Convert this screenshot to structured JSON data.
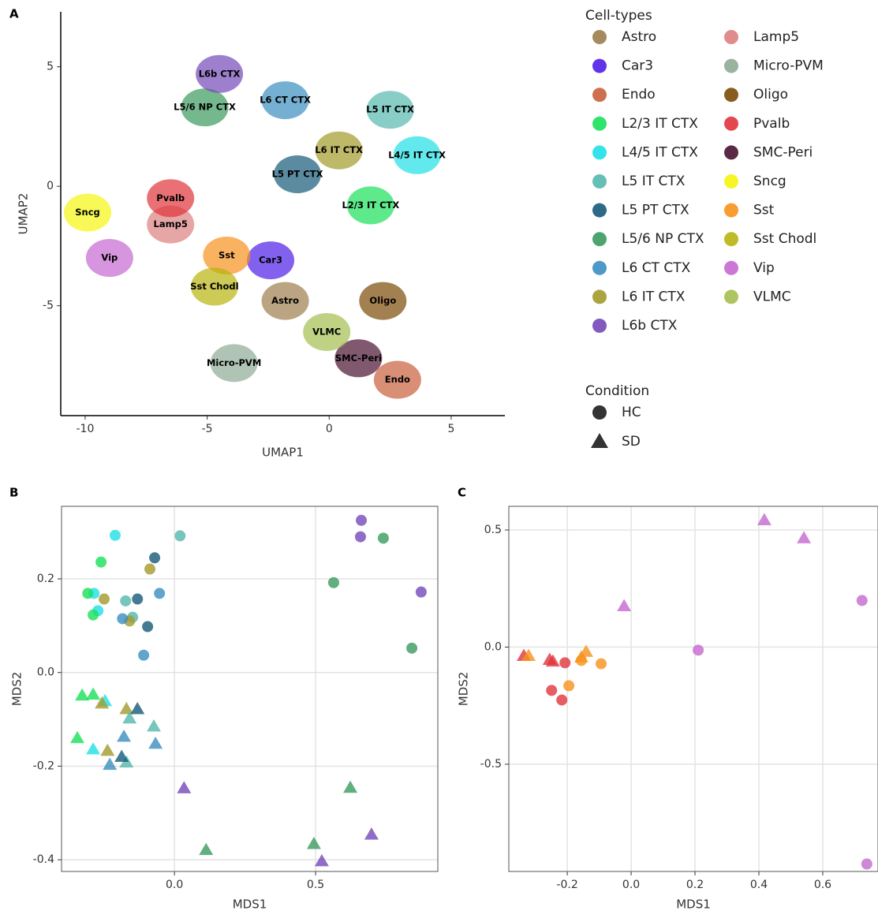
{
  "chart_data": [
    {
      "type": "scatter",
      "panel_label": "A",
      "x_label": "UMAP1",
      "y_label": "UMAP2",
      "grid": false,
      "xlim": [
        -11,
        7.2
      ],
      "ylim": [
        -9.6,
        7.3
      ],
      "xticks": [
        -10,
        -5,
        0,
        5
      ],
      "yticks": [
        -5,
        0,
        5
      ],
      "legend_title": "Cell-types",
      "series": [
        {
          "name": "Astro",
          "color": "#9c7d4b",
          "x": [
            -1.8
          ],
          "values": [
            -4.8
          ]
        },
        {
          "name": "Car3",
          "color": "#4f1ee8",
          "x": [
            -2.4
          ],
          "values": [
            -3.1
          ]
        },
        {
          "name": "Endo",
          "color": "#c8603a",
          "x": [
            2.8
          ],
          "values": [
            -8.1
          ]
        },
        {
          "name": "L2/3 IT CTX",
          "color": "#19e05a",
          "x": [
            1.7
          ],
          "values": [
            -0.8
          ]
        },
        {
          "name": "L4/5 IT CTX",
          "color": "#1ee0e6",
          "x": [
            3.6
          ],
          "values": [
            1.3
          ]
        },
        {
          "name": "L5 IT CTX",
          "color": "#55b8ae",
          "x": [
            2.5
          ],
          "values": [
            3.2
          ]
        },
        {
          "name": "L5 PT CTX",
          "color": "#155a78",
          "x": [
            -1.3
          ],
          "values": [
            0.5
          ]
        },
        {
          "name": "L5/6 NP CTX",
          "color": "#3a9a5e",
          "x": [
            -5.1
          ],
          "values": [
            3.3
          ]
        },
        {
          "name": "L6 CT CTX",
          "color": "#3a8fc0",
          "x": [
            -1.8
          ],
          "values": [
            3.6
          ]
        },
        {
          "name": "L6 IT CTX",
          "color": "#a39a2a",
          "x": [
            0.4
          ],
          "values": [
            1.5
          ]
        },
        {
          "name": "L6b CTX",
          "color": "#7448b8",
          "x": [
            -4.5
          ],
          "values": [
            4.7
          ]
        },
        {
          "name": "Lamp5",
          "color": "#dd8080",
          "x": [
            -6.5
          ],
          "values": [
            -1.6
          ]
        },
        {
          "name": "Micro-PVM",
          "color": "#8fab95",
          "x": [
            -3.9
          ],
          "values": [
            -7.4
          ]
        },
        {
          "name": "Oligo",
          "color": "#7a4a05",
          "x": [
            2.2
          ],
          "values": [
            -4.8
          ]
        },
        {
          "name": "Pvalb",
          "color": "#e0343c",
          "x": [
            -6.5
          ],
          "values": [
            -0.5
          ]
        },
        {
          "name": "SMC-Peri",
          "color": "#4a1230",
          "x": [
            1.2
          ],
          "values": [
            -7.2
          ]
        },
        {
          "name": "Sncg",
          "color": "#f5f50e",
          "x": [
            -9.9
          ],
          "values": [
            -1.1
          ]
        },
        {
          "name": "Sst",
          "color": "#f7921c",
          "x": [
            -4.2
          ],
          "values": [
            -2.9
          ]
        },
        {
          "name": "Sst Chodl",
          "color": "#b8b40e",
          "x": [
            -4.7
          ],
          "values": [
            -4.2
          ]
        },
        {
          "name": "Vip",
          "color": "#c468d0",
          "x": [
            -9.0
          ],
          "values": [
            -3.0
          ]
        },
        {
          "name": "VLMC",
          "color": "#a4bf50",
          "x": [
            -0.1
          ],
          "values": [
            -6.1
          ]
        }
      ],
      "shape_legend": {
        "title": "Condition",
        "items": [
          {
            "name": "HC",
            "shape": "circle"
          },
          {
            "name": "SD",
            "shape": "triangle"
          }
        ]
      }
    },
    {
      "type": "scatter",
      "panel_label": "B",
      "x_label": "MDS1",
      "y_label": "MDS2",
      "grid": true,
      "xlim": [
        -0.4,
        0.933
      ],
      "ylim": [
        -0.425,
        0.355
      ],
      "xticks": [
        {
          "value": 0,
          "label": "0.0"
        },
        0.5
      ],
      "yticks": [
        -0.4,
        -0.2,
        {
          "value": 0,
          "label": "0.0"
        },
        0.2
      ],
      "series": [
        {
          "color": "#1ee0e6",
          "condition": "HC",
          "x": [
            -0.21,
            -0.285,
            -0.271
          ],
          "values": [
            0.293,
            0.169,
            0.132
          ]
        },
        {
          "color": "#55b8ae",
          "condition": "HC",
          "x": [
            0.02,
            -0.173,
            -0.148
          ],
          "values": [
            0.292,
            0.153,
            0.118
          ]
        },
        {
          "color": "#19e05a",
          "condition": "HC",
          "x": [
            -0.26,
            -0.307,
            -0.288
          ],
          "values": [
            0.236,
            0.169,
            0.123
          ]
        },
        {
          "color": "#155a78",
          "condition": "HC",
          "x": [
            -0.07,
            -0.131,
            -0.095
          ],
          "values": [
            0.245,
            0.157,
            0.098
          ]
        },
        {
          "color": "#a39a2a",
          "condition": "HC",
          "x": [
            -0.087,
            -0.249,
            -0.159
          ],
          "values": [
            0.221,
            0.157,
            0.11
          ]
        },
        {
          "color": "#3a8fc0",
          "condition": "HC",
          "x": [
            -0.053,
            -0.184,
            -0.109
          ],
          "values": [
            0.169,
            0.115,
            0.037
          ]
        },
        {
          "color": "#7448b8",
          "condition": "HC",
          "x": [
            0.662,
            0.659,
            0.874
          ],
          "values": [
            0.325,
            0.29,
            0.172
          ]
        },
        {
          "color": "#3a9a5e",
          "condition": "HC",
          "x": [
            0.74,
            0.564,
            0.841
          ],
          "values": [
            0.287,
            0.192,
            0.052
          ]
        },
        {
          "color": "#19e05a",
          "condition": "SD",
          "x": [
            -0.327,
            -0.288,
            -0.344
          ],
          "values": [
            -0.049,
            -0.047,
            -0.14
          ]
        },
        {
          "color": "#1ee0e6",
          "condition": "SD",
          "x": [
            -0.246,
            -0.288
          ],
          "values": [
            -0.061,
            -0.164
          ]
        },
        {
          "color": "#a39a2a",
          "condition": "SD",
          "x": [
            -0.257,
            -0.237,
            -0.17
          ],
          "values": [
            -0.066,
            -0.167,
            -0.078
          ]
        },
        {
          "color": "#55b8ae",
          "condition": "SD",
          "x": [
            -0.159,
            -0.073,
            -0.17
          ],
          "values": [
            -0.098,
            -0.115,
            -0.192
          ]
        },
        {
          "color": "#155a78",
          "condition": "SD",
          "x": [
            -0.131,
            -0.187
          ],
          "values": [
            -0.078,
            -0.18
          ]
        },
        {
          "color": "#3a8fc0",
          "condition": "SD",
          "x": [
            -0.179,
            -0.067,
            -0.229
          ],
          "values": [
            -0.137,
            -0.152,
            -0.197
          ]
        },
        {
          "color": "#7448b8",
          "condition": "SD",
          "x": [
            0.034,
            0.698,
            0.522
          ],
          "values": [
            -0.247,
            -0.346,
            -0.403
          ]
        },
        {
          "color": "#3a9a5e",
          "condition": "SD",
          "x": [
            0.112,
            0.623,
            0.494
          ],
          "values": [
            -0.379,
            -0.246,
            -0.366
          ]
        }
      ]
    },
    {
      "type": "scatter",
      "panel_label": "C",
      "x_label": "MDS1",
      "y_label": "MDS2",
      "grid": true,
      "xlim": [
        -0.383,
        0.773
      ],
      "ylim": [
        -0.958,
        0.601
      ],
      "xticks": [
        -0.2,
        {
          "value": 0,
          "label": "0.0"
        },
        0.2,
        0.4,
        0.6
      ],
      "yticks": [
        -0.5,
        {
          "value": 0,
          "label": "0.0"
        },
        0.5
      ],
      "series": [
        {
          "color": "#e0343c",
          "condition": "HC",
          "x": [
            -0.249,
            -0.207,
            -0.217
          ],
          "values": [
            -0.185,
            -0.067,
            -0.226
          ]
        },
        {
          "color": "#f7921c",
          "condition": "HC",
          "x": [
            -0.156,
            -0.195,
            -0.094
          ],
          "values": [
            -0.057,
            -0.165,
            -0.071
          ]
        },
        {
          "color": "#c468d0",
          "condition": "HC",
          "x": [
            0.21,
            0.723,
            0.738
          ],
          "values": [
            -0.013,
            0.199,
            -0.926
          ]
        },
        {
          "color": "#e0343c",
          "condition": "SD",
          "x": [
            -0.336,
            -0.255,
            -0.245
          ],
          "values": [
            -0.037,
            -0.054,
            -0.061
          ]
        },
        {
          "color": "#f7921c",
          "condition": "SD",
          "x": [
            -0.321,
            -0.156,
            -0.141
          ],
          "values": [
            -0.037,
            -0.044,
            -0.02
          ]
        },
        {
          "color": "#c468d0",
          "condition": "SD",
          "x": [
            -0.022,
            0.417,
            0.541
          ],
          "values": [
            0.175,
            0.542,
            0.465
          ]
        }
      ]
    }
  ]
}
